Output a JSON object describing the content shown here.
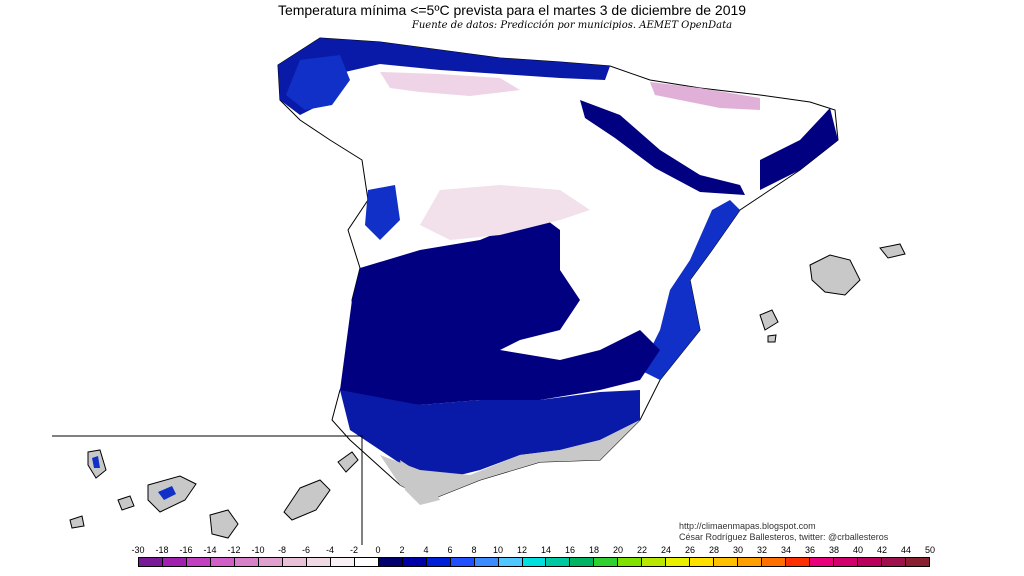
{
  "map": {
    "title": "Temperatura mínima <=5ºC prevista para el martes 3 de diciembre de 2019",
    "subtitle": "Fuente de datos: Predicción por municipios. AEMET OpenData",
    "credit_url": "http://climaenmapas.blogspot.com",
    "credit_author": "César Rodríguez Ballesteros, twitter: @crballesteros"
  },
  "legend": {
    "labels": [
      "-30",
      "-18",
      "-16",
      "-14",
      "-12",
      "-10",
      "-8",
      "-6",
      "-4",
      "-2",
      "0",
      "2",
      "4",
      "6",
      "8",
      "10",
      "12",
      "14",
      "16",
      "18",
      "20",
      "22",
      "24",
      "26",
      "28",
      "30",
      "32",
      "34",
      "36",
      "38",
      "40",
      "42",
      "44",
      "50"
    ],
    "colors": [
      "#7a1a99",
      "#a020b0",
      "#c040c0",
      "#d060c8",
      "#d880c8",
      "#e0a0d0",
      "#e8c0d8",
      "#f0d8e4",
      "#f8f0f4",
      "#ffffff",
      "#00006e",
      "#0000a8",
      "#0020d8",
      "#2050ff",
      "#3c8cff",
      "#50c8ff",
      "#00e0e0",
      "#00c8a0",
      "#00b464",
      "#30d030",
      "#80e000",
      "#b8e800",
      "#e8f000",
      "#ffe000",
      "#ffc000",
      "#ffa000",
      "#ff7000",
      "#ff3000",
      "#e8007c",
      "#d0006c",
      "#b8005c",
      "#a0104c",
      "#882030"
    ]
  },
  "colors": {
    "cold_deep": "#000080",
    "cold_mid": "#1030c8",
    "land_mild": "#ffffff",
    "land_warm": "#c8c8c8",
    "frost_pink": "#e0b0d8"
  }
}
